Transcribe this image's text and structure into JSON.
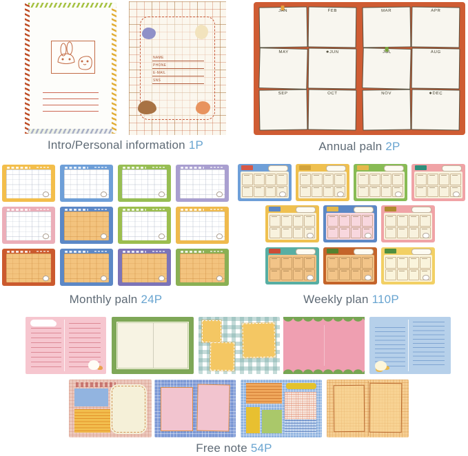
{
  "colors": {
    "caption_text": "#5e6a75",
    "caption_count": "#68a4d0",
    "annual_background": "#cf5c33",
    "annual_note": "#f8f6ef"
  },
  "sections": {
    "intro": {
      "label": "Intro/Personal information",
      "count": "1P"
    },
    "annual": {
      "label": "Annual paln",
      "count": "2P"
    },
    "monthly": {
      "label": "Monthly paln",
      "count": "24P"
    },
    "weekly": {
      "label": "Weekly plan",
      "count": "110P"
    },
    "freenote": {
      "label": "Free note",
      "count": "54P"
    }
  },
  "intro": {
    "fields": [
      "NAME",
      "PHONE",
      "E-MAIL",
      "SNS"
    ]
  },
  "annual": {
    "months": [
      {
        "label": "JAN",
        "pin": "#e8a23c"
      },
      {
        "label": "FEB"
      },
      {
        "label": "MAR"
      },
      {
        "label": "APR"
      },
      {
        "label": "MAY"
      },
      {
        "label": "JUN",
        "star": true
      },
      {
        "label": "JUL",
        "pin": "#7aa43e"
      },
      {
        "label": "AUG"
      },
      {
        "label": "SEP"
      },
      {
        "label": "OCT"
      },
      {
        "label": "NOV"
      },
      {
        "label": "DEC",
        "star": true
      }
    ]
  },
  "monthly": {
    "pages": [
      {
        "border": "#f3be4b",
        "interior": "#ffffff",
        "grid": "#aab2c4"
      },
      {
        "border": "#6e9fd8",
        "interior": "#ffffff",
        "grid": "#aab2c4"
      },
      {
        "border": "#97be53",
        "interior": "#ffffff",
        "grid": "#aab2c4"
      },
      {
        "border": "#a99fd0",
        "interior": "#ffffff",
        "grid": "#aab2c4"
      },
      {
        "border": "#ebaeb9",
        "interior": "#ffffff",
        "grid": "#aab2c4"
      },
      {
        "border": "#5c88c6",
        "interior": "#f3c37e",
        "grid": "#cc8a3e"
      },
      {
        "border": "#9cbe4e",
        "interior": "#ffffff",
        "grid": "#aab2c4"
      },
      {
        "border": "#efba4d",
        "interior": "#ffffff",
        "grid": "#aab2c4"
      },
      {
        "border": "#cb5a2e",
        "interior": "#f3c37e",
        "grid": "#cc8a3e"
      },
      {
        "border": "#5c88c6",
        "interior": "#f3c37e",
        "grid": "#cc8a3e"
      },
      {
        "border": "#7c74b8",
        "interior": "#f3c37e",
        "grid": "#cc8a3e"
      },
      {
        "border": "#8ab054",
        "interior": "#f3c37e",
        "grid": "#cc8a3e"
      }
    ]
  },
  "weekly": {
    "rows": [
      [
        {
          "border": "#6e9fd8",
          "tab": "#d65847",
          "interior": "#f8f2de"
        },
        {
          "border": "#efc04f",
          "tab": "#d2a33a",
          "interior": "#f8f2de"
        },
        {
          "border": "#88bb55",
          "tab": "#e4b84a",
          "interior": "#f8f2de"
        },
        {
          "border": "#f0a3a6",
          "tab": "#2e8f7c",
          "interior": "#f8f2de"
        }
      ],
      [
        {
          "border": "#efc04f",
          "tab": "#5c88c6",
          "interior": "#f8f2de"
        },
        {
          "border": "#5c88c6",
          "tab": "#e4b84a",
          "interior": "#f8d7de"
        },
        {
          "border": "#f0a3a6",
          "tab": "#b08a2e",
          "interior": "#f8f2de"
        }
      ],
      [
        {
          "border": "#57aea3",
          "tab": "#cc4b36",
          "interior": "#f2c488"
        },
        {
          "border": "#c4642a",
          "tab": "#55822f",
          "interior": "#f2c488"
        },
        {
          "border": "#f2d064",
          "tab": "#4f8f3f",
          "interior": "#faf4dc"
        }
      ]
    ]
  },
  "freenote": {
    "pages": [
      "pink-lined-note",
      "green-border-blank",
      "gingham-sticky-notes",
      "pink-scalloped-blank",
      "blue-lined-note",
      "grid-sticky-collage",
      "blue-grid-pink-notes",
      "blue-collage-blocks",
      "orange-grid-frames"
    ]
  }
}
